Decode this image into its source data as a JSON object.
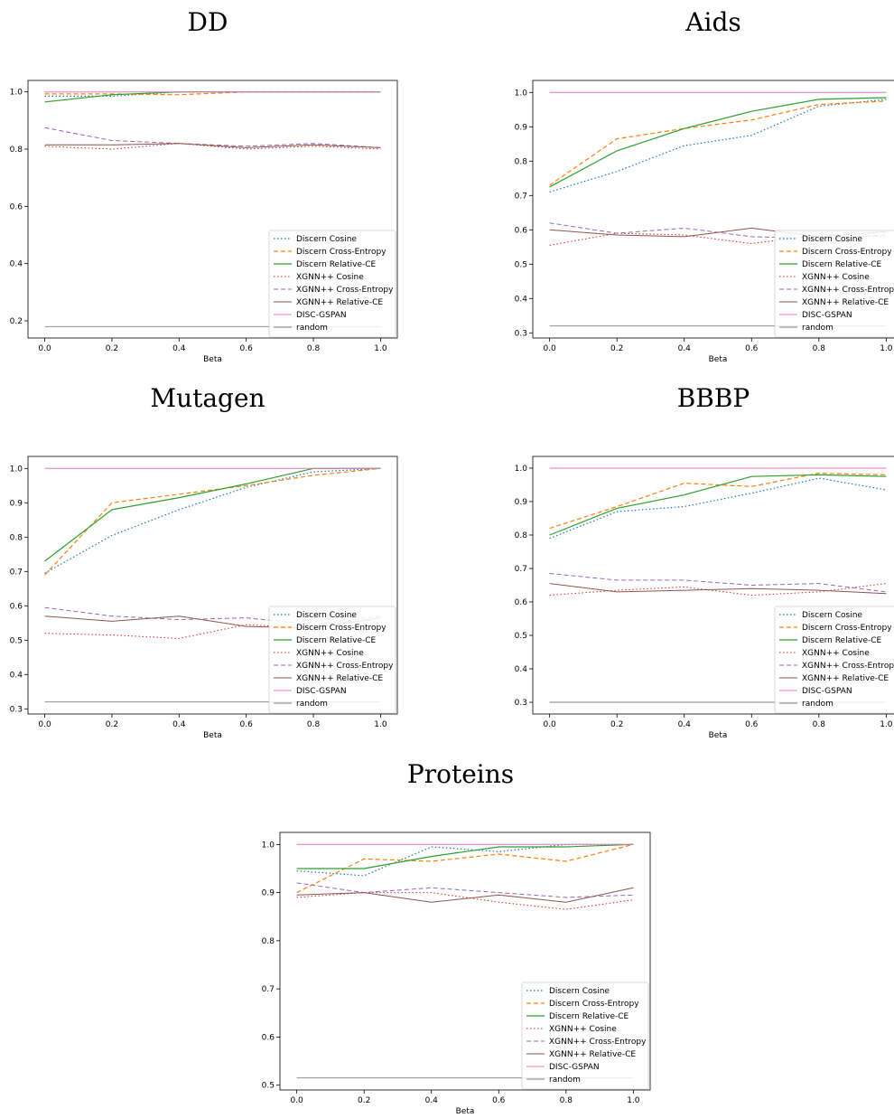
{
  "colors": {
    "Discern Cosine": "#1f77b4",
    "Discern Cross-Entropy": "#ff7f0e",
    "Discern Relative-CE": "#2ca02c",
    "XGNN++ Cosine": "#d62728",
    "XGNN++ Cross-Entropy": "#9467bd",
    "XGNN++ Relative-CE": "#8c564b",
    "DISC-GSPAN": "#e377c2",
    "random": "#7f7f7f"
  },
  "chart_data": [
    {
      "type": "line",
      "title": "DD",
      "xlabel": "Beta",
      "ylabel": "",
      "x": [
        0.0,
        0.2,
        0.4,
        0.6,
        0.8,
        1.0
      ],
      "xticks": [
        "0.0",
        "0.2",
        "0.4",
        "0.6",
        "0.8",
        "1.0"
      ],
      "yticks": [
        0.2,
        0.4,
        0.6,
        0.8,
        1.0
      ],
      "ytick_labels": [
        "0.2",
        "0.4",
        "0.6",
        "0.8",
        "1.0"
      ],
      "ylim": [
        0.14,
        1.04
      ],
      "xlim": [
        -0.05,
        1.05
      ],
      "legend": "lower-right",
      "series": [
        {
          "name": "Discern Cosine",
          "values": [
            0.985,
            0.985,
            1.0,
            1.0,
            1.0,
            1.0
          ]
        },
        {
          "name": "Discern Cross-Entropy",
          "values": [
            0.993,
            0.993,
            0.99,
            1.0,
            1.0,
            1.0
          ]
        },
        {
          "name": "Discern Relative-CE",
          "values": [
            0.965,
            0.99,
            1.0,
            1.0,
            1.0,
            1.0
          ]
        },
        {
          "name": "XGNN++ Cosine",
          "values": [
            0.81,
            0.8,
            0.82,
            0.8,
            0.81,
            0.8
          ]
        },
        {
          "name": "XGNN++ Cross-Entropy",
          "values": [
            0.875,
            0.83,
            0.82,
            0.81,
            0.82,
            0.805
          ]
        },
        {
          "name": "XGNN++ Relative-CE",
          "values": [
            0.815,
            0.815,
            0.82,
            0.805,
            0.815,
            0.805
          ]
        },
        {
          "name": "DISC-GSPAN",
          "values": [
            1.0,
            1.0,
            1.0,
            1.0,
            1.0,
            1.0
          ]
        },
        {
          "name": "random",
          "values": [
            0.18,
            0.18,
            0.18,
            0.18,
            0.18,
            0.18
          ]
        }
      ]
    },
    {
      "type": "line",
      "title": "Aids",
      "xlabel": "Beta",
      "ylabel": "",
      "x": [
        0.0,
        0.2,
        0.4,
        0.6,
        0.8,
        1.0
      ],
      "xticks": [
        "0.0",
        "0.2",
        "0.4",
        "0.6",
        "0.8",
        "1.0"
      ],
      "yticks": [
        0.3,
        0.4,
        0.5,
        0.6,
        0.7,
        0.8,
        0.9,
        1.0
      ],
      "ytick_labels": [
        "0.3",
        "0.4",
        "0.5",
        "0.6",
        "0.7",
        "0.8",
        "0.9",
        "1.0"
      ],
      "ylim": [
        0.285,
        1.035
      ],
      "xlim": [
        -0.05,
        1.05
      ],
      "legend": "lower-right",
      "series": [
        {
          "name": "Discern Cosine",
          "values": [
            0.71,
            0.77,
            0.845,
            0.875,
            0.96,
            0.98
          ]
        },
        {
          "name": "Discern Cross-Entropy",
          "values": [
            0.73,
            0.865,
            0.895,
            0.92,
            0.965,
            0.975
          ]
        },
        {
          "name": "Discern Relative-CE",
          "values": [
            0.725,
            0.83,
            0.895,
            0.945,
            0.98,
            0.985
          ]
        },
        {
          "name": "XGNN++ Cosine",
          "values": [
            0.555,
            0.59,
            0.585,
            0.56,
            0.585,
            0.58
          ]
        },
        {
          "name": "XGNN++ Cross-Entropy",
          "values": [
            0.62,
            0.59,
            0.605,
            0.58,
            0.575,
            0.585
          ]
        },
        {
          "name": "XGNN++ Relative-CE",
          "values": [
            0.6,
            0.585,
            0.58,
            0.605,
            0.58,
            0.595
          ]
        },
        {
          "name": "DISC-GSPAN",
          "values": [
            1.0,
            1.0,
            1.0,
            1.0,
            1.0,
            1.0
          ]
        },
        {
          "name": "random",
          "values": [
            0.32,
            0.32,
            0.32,
            0.32,
            0.32,
            0.32
          ]
        }
      ]
    },
    {
      "type": "line",
      "title": "Mutagen",
      "xlabel": "Beta",
      "ylabel": "",
      "x": [
        0.0,
        0.2,
        0.4,
        0.6,
        0.8,
        1.0
      ],
      "xticks": [
        "0.0",
        "0.2",
        "0.4",
        "0.6",
        "0.8",
        "1.0"
      ],
      "yticks": [
        0.3,
        0.4,
        0.5,
        0.6,
        0.7,
        0.8,
        0.9,
        1.0
      ],
      "ytick_labels": [
        "0.3",
        "0.4",
        "0.5",
        "0.6",
        "0.7",
        "0.8",
        "0.9",
        "1.0"
      ],
      "ylim": [
        0.285,
        1.035
      ],
      "xlim": [
        -0.05,
        1.05
      ],
      "legend": "lower-right",
      "series": [
        {
          "name": "Discern Cosine",
          "values": [
            0.695,
            0.805,
            0.88,
            0.945,
            0.99,
            1.0
          ]
        },
        {
          "name": "Discern Cross-Entropy",
          "values": [
            0.69,
            0.9,
            0.925,
            0.95,
            0.98,
            1.0
          ]
        },
        {
          "name": "Discern Relative-CE",
          "values": [
            0.73,
            0.88,
            0.915,
            0.955,
            1.0,
            1.0
          ]
        },
        {
          "name": "XGNN++ Cosine",
          "values": [
            0.52,
            0.515,
            0.505,
            0.545,
            0.535,
            0.565
          ]
        },
        {
          "name": "XGNN++ Cross-Entropy",
          "values": [
            0.595,
            0.57,
            0.56,
            0.565,
            0.545,
            0.57
          ]
        },
        {
          "name": "XGNN++ Relative-CE",
          "values": [
            0.57,
            0.555,
            0.57,
            0.54,
            0.535,
            0.565
          ]
        },
        {
          "name": "DISC-GSPAN",
          "values": [
            1.0,
            1.0,
            1.0,
            1.0,
            1.0,
            1.0
          ]
        },
        {
          "name": "random",
          "values": [
            0.32,
            0.32,
            0.32,
            0.32,
            0.32,
            0.32
          ]
        }
      ]
    },
    {
      "type": "line",
      "title": "BBBP",
      "xlabel": "Beta",
      "ylabel": "",
      "x": [
        0.0,
        0.2,
        0.4,
        0.6,
        0.8,
        1.0
      ],
      "xticks": [
        "0.0",
        "0.2",
        "0.4",
        "0.6",
        "0.8",
        "1.0"
      ],
      "yticks": [
        0.3,
        0.4,
        0.5,
        0.6,
        0.7,
        0.8,
        0.9,
        1.0
      ],
      "ytick_labels": [
        "0.3",
        "0.4",
        "0.5",
        "0.6",
        "0.7",
        "0.8",
        "0.9",
        "1.0"
      ],
      "ylim": [
        0.265,
        1.035
      ],
      "xlim": [
        -0.05,
        1.05
      ],
      "legend": "lower-right",
      "series": [
        {
          "name": "Discern Cosine",
          "values": [
            0.79,
            0.87,
            0.885,
            0.925,
            0.97,
            0.935
          ]
        },
        {
          "name": "Discern Cross-Entropy",
          "values": [
            0.82,
            0.885,
            0.955,
            0.945,
            0.985,
            0.98
          ]
        },
        {
          "name": "Discern Relative-CE",
          "values": [
            0.8,
            0.88,
            0.92,
            0.975,
            0.98,
            0.975
          ]
        },
        {
          "name": "XGNN++ Cosine",
          "values": [
            0.62,
            0.635,
            0.645,
            0.62,
            0.63,
            0.655
          ]
        },
        {
          "name": "XGNN++ Cross-Entropy",
          "values": [
            0.685,
            0.665,
            0.665,
            0.65,
            0.655,
            0.63
          ]
        },
        {
          "name": "XGNN++ Relative-CE",
          "values": [
            0.655,
            0.63,
            0.635,
            0.64,
            0.635,
            0.625
          ]
        },
        {
          "name": "DISC-GSPAN",
          "values": [
            1.0,
            1.0,
            1.0,
            1.0,
            1.0,
            1.0
          ]
        },
        {
          "name": "random",
          "values": [
            0.3,
            0.3,
            0.3,
            0.3,
            0.3,
            0.3
          ]
        }
      ]
    },
    {
      "type": "line",
      "title": "Proteins",
      "xlabel": "Beta",
      "ylabel": "",
      "x": [
        0.0,
        0.2,
        0.4,
        0.6,
        0.8,
        1.0
      ],
      "xticks": [
        "0.0",
        "0.2",
        "0.4",
        "0.6",
        "0.8",
        "1.0"
      ],
      "yticks": [
        0.5,
        0.6,
        0.7,
        0.8,
        0.9,
        1.0
      ],
      "ytick_labels": [
        "0.5",
        "0.6",
        "0.7",
        "0.8",
        "0.9",
        "1.0"
      ],
      "ylim": [
        0.49,
        1.025
      ],
      "xlim": [
        -0.05,
        1.05
      ],
      "legend": "lower-right",
      "series": [
        {
          "name": "Discern Cosine",
          "values": [
            0.945,
            0.935,
            0.995,
            0.985,
            1.0,
            1.0
          ]
        },
        {
          "name": "Discern Cross-Entropy",
          "values": [
            0.9,
            0.97,
            0.965,
            0.98,
            0.965,
            1.0
          ]
        },
        {
          "name": "Discern Relative-CE",
          "values": [
            0.95,
            0.95,
            0.975,
            0.995,
            0.995,
            1.0
          ]
        },
        {
          "name": "XGNN++ Cosine",
          "values": [
            0.89,
            0.9,
            0.9,
            0.88,
            0.865,
            0.885
          ]
        },
        {
          "name": "XGNN++ Cross-Entropy",
          "values": [
            0.92,
            0.9,
            0.91,
            0.9,
            0.89,
            0.895
          ]
        },
        {
          "name": "XGNN++ Relative-CE",
          "values": [
            0.895,
            0.9,
            0.88,
            0.895,
            0.88,
            0.91
          ]
        },
        {
          "name": "DISC-GSPAN",
          "values": [
            1.0,
            1.0,
            1.0,
            1.0,
            1.0,
            1.0
          ]
        },
        {
          "name": "random",
          "values": [
            0.515,
            0.515,
            0.515,
            0.515,
            0.515,
            0.515
          ]
        }
      ]
    }
  ]
}
